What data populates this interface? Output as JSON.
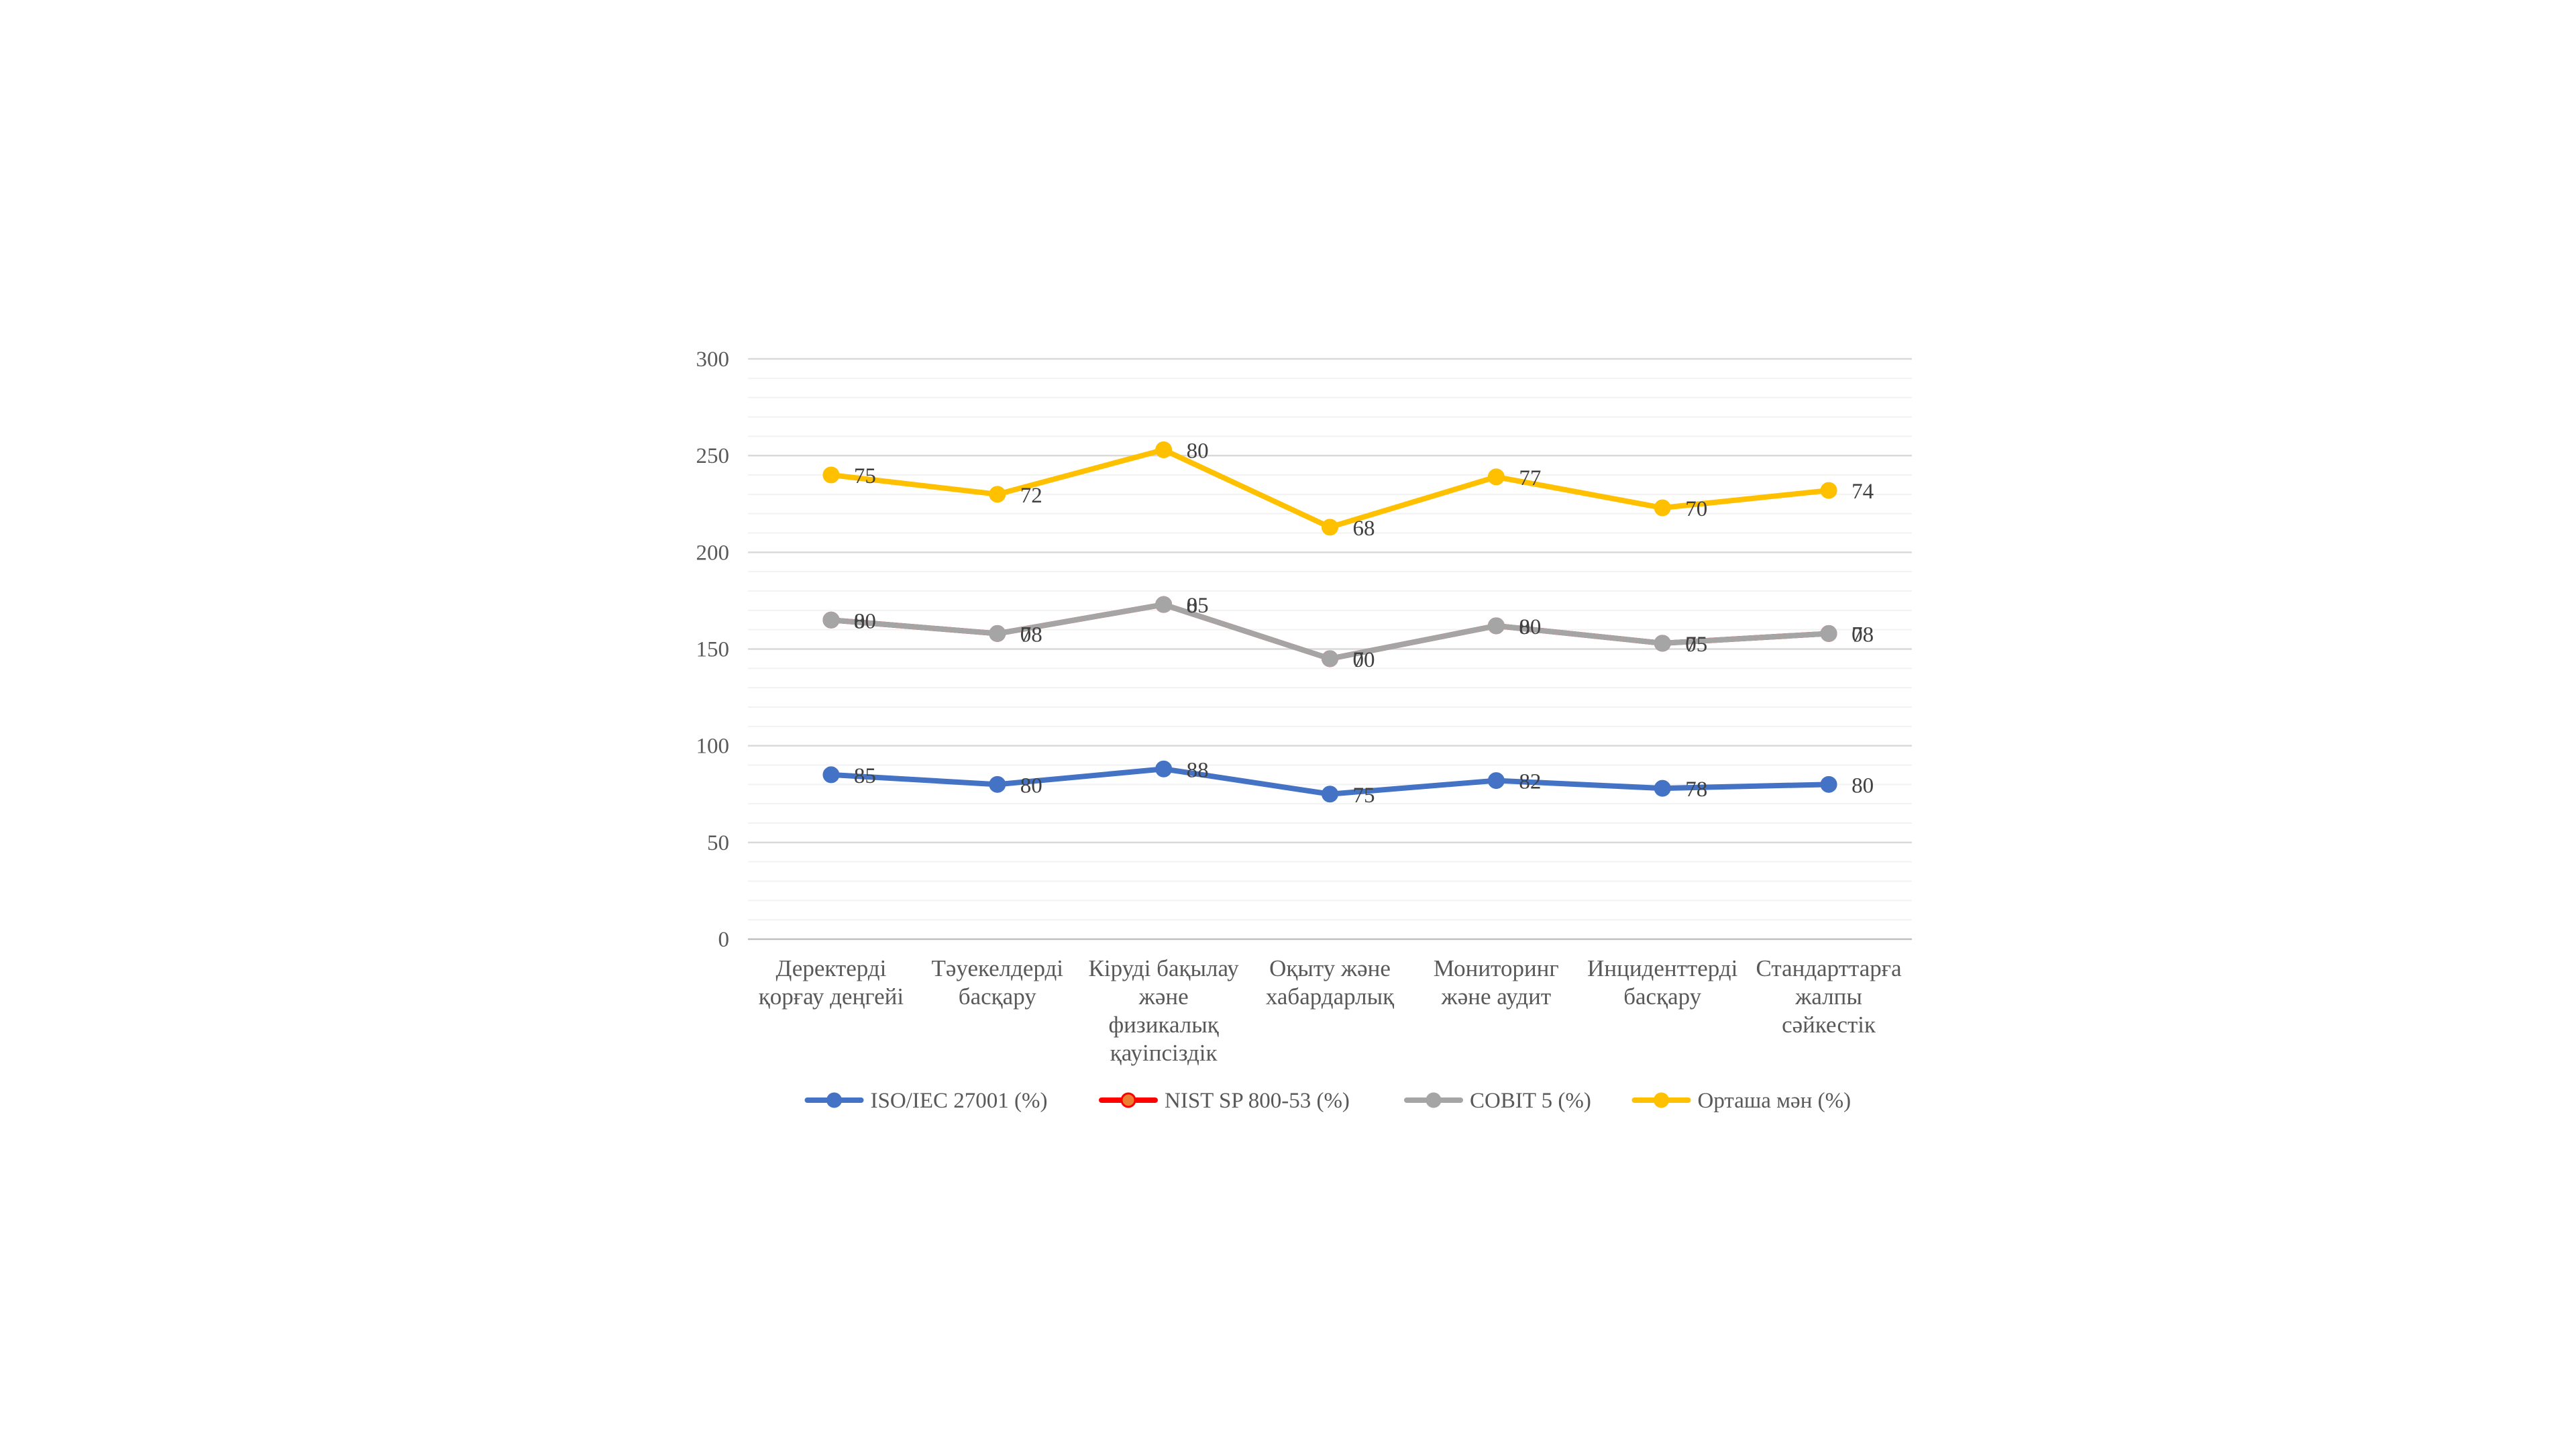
{
  "chart_data": {
    "type": "line",
    "stacked": true,
    "categories": [
      [
        "Деректерді",
        "қорғау деңгейі"
      ],
      [
        "Тәуекелдерді",
        "басқару"
      ],
      [
        "Кіруді бақылау",
        "және",
        "физикалық",
        "қауіпсіздік"
      ],
      [
        "Оқыту және",
        "хабардарлық"
      ],
      [
        "Мониторинг",
        "және аудит"
      ],
      [
        "Инциденттерді",
        "басқару"
      ],
      [
        "Стандарттарға",
        "жалпы",
        "сәйкестік"
      ]
    ],
    "series": [
      {
        "name": "ISO/IEC 27001 (%)",
        "values": [
          85,
          80,
          88,
          75,
          82,
          78,
          80
        ],
        "color": "#4472C4",
        "marker_fill": "#4472C4"
      },
      {
        "name": "NIST SP 800-53 (%)",
        "values": [
          80,
          78,
          85,
          70,
          80,
          75,
          78
        ],
        "color": "#FF0000",
        "marker_fill": "#ED7D31"
      },
      {
        "name": "COBIT 5 (%)",
        "values": [
          0,
          0,
          0,
          0,
          0,
          0,
          0
        ],
        "color": "#A5A5A5",
        "marker_fill": "#A5A5A5"
      },
      {
        "name": "Орташа мән (%)",
        "values": [
          75,
          72,
          80,
          68,
          77,
          70,
          74
        ],
        "color": "#FFC000",
        "marker_fill": "#FFC000"
      }
    ],
    "ylim": [
      0,
      300
    ],
    "y_ticks": [
      0,
      50,
      100,
      150,
      200,
      250,
      300
    ],
    "minor_grid_step": 10,
    "grid": true,
    "legend": "bottom",
    "title": "",
    "xlabel": "",
    "ylabel": ""
  }
}
